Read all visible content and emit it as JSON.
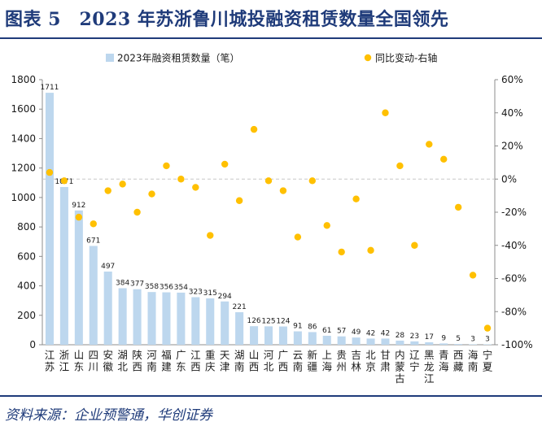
{
  "figure": {
    "title": "图表 5　2023 年苏浙鲁川城投融资租赁数量全国领先",
    "source": "资料来源：企业预警通，华创证券"
  },
  "colors": {
    "bar": "#bdd7ee",
    "dot": "#ffc000",
    "brand": "#1f3b7a",
    "zero_line": "#c8c8c8"
  },
  "chart_data": {
    "type": "bar",
    "categories": [
      "江苏",
      "浙江",
      "山东",
      "四川",
      "安徽",
      "湖北",
      "陕西",
      "河南",
      "福建",
      "广东",
      "江西",
      "重庆",
      "天津",
      "湖南",
      "山西",
      "河北",
      "广西",
      "云南",
      "新疆",
      "上海",
      "贵州",
      "吉林",
      "北京",
      "甘肃",
      "内蒙古",
      "辽宁",
      "黑龙江",
      "青海",
      "西藏",
      "海南",
      "宁夏"
    ],
    "series": [
      {
        "name": "2023年融资租赁数量（笔）",
        "type": "bar",
        "axis": "left",
        "values": [
          1711,
          1071,
          912,
          671,
          497,
          384,
          377,
          358,
          356,
          354,
          323,
          315,
          294,
          221,
          126,
          125,
          124,
          91,
          86,
          61,
          57,
          49,
          42,
          42,
          28,
          23,
          17,
          9,
          5,
          3,
          3
        ]
      },
      {
        "name": "同比变动-右轴",
        "type": "scatter",
        "axis": "right",
        "values": [
          4,
          -1,
          -23,
          -27,
          -7,
          -3,
          -20,
          -9,
          8,
          0,
          -5,
          -34,
          9,
          -13,
          30,
          -1,
          -7,
          -35,
          -1,
          -28,
          -44,
          -12,
          -43,
          40,
          8,
          -40,
          21,
          12,
          -17,
          -58,
          -90
        ]
      }
    ],
    "ylim_left": [
      0,
      1800
    ],
    "yticks_left": [
      0,
      200,
      400,
      600,
      800,
      1000,
      1200,
      1400,
      1600,
      1800
    ],
    "ylim_right": [
      -100,
      60
    ],
    "yticks_right": [
      "-100%",
      "-80%",
      "-60%",
      "-40%",
      "-20%",
      "0%",
      "20%",
      "40%",
      "60%"
    ],
    "legend_position": "top"
  }
}
